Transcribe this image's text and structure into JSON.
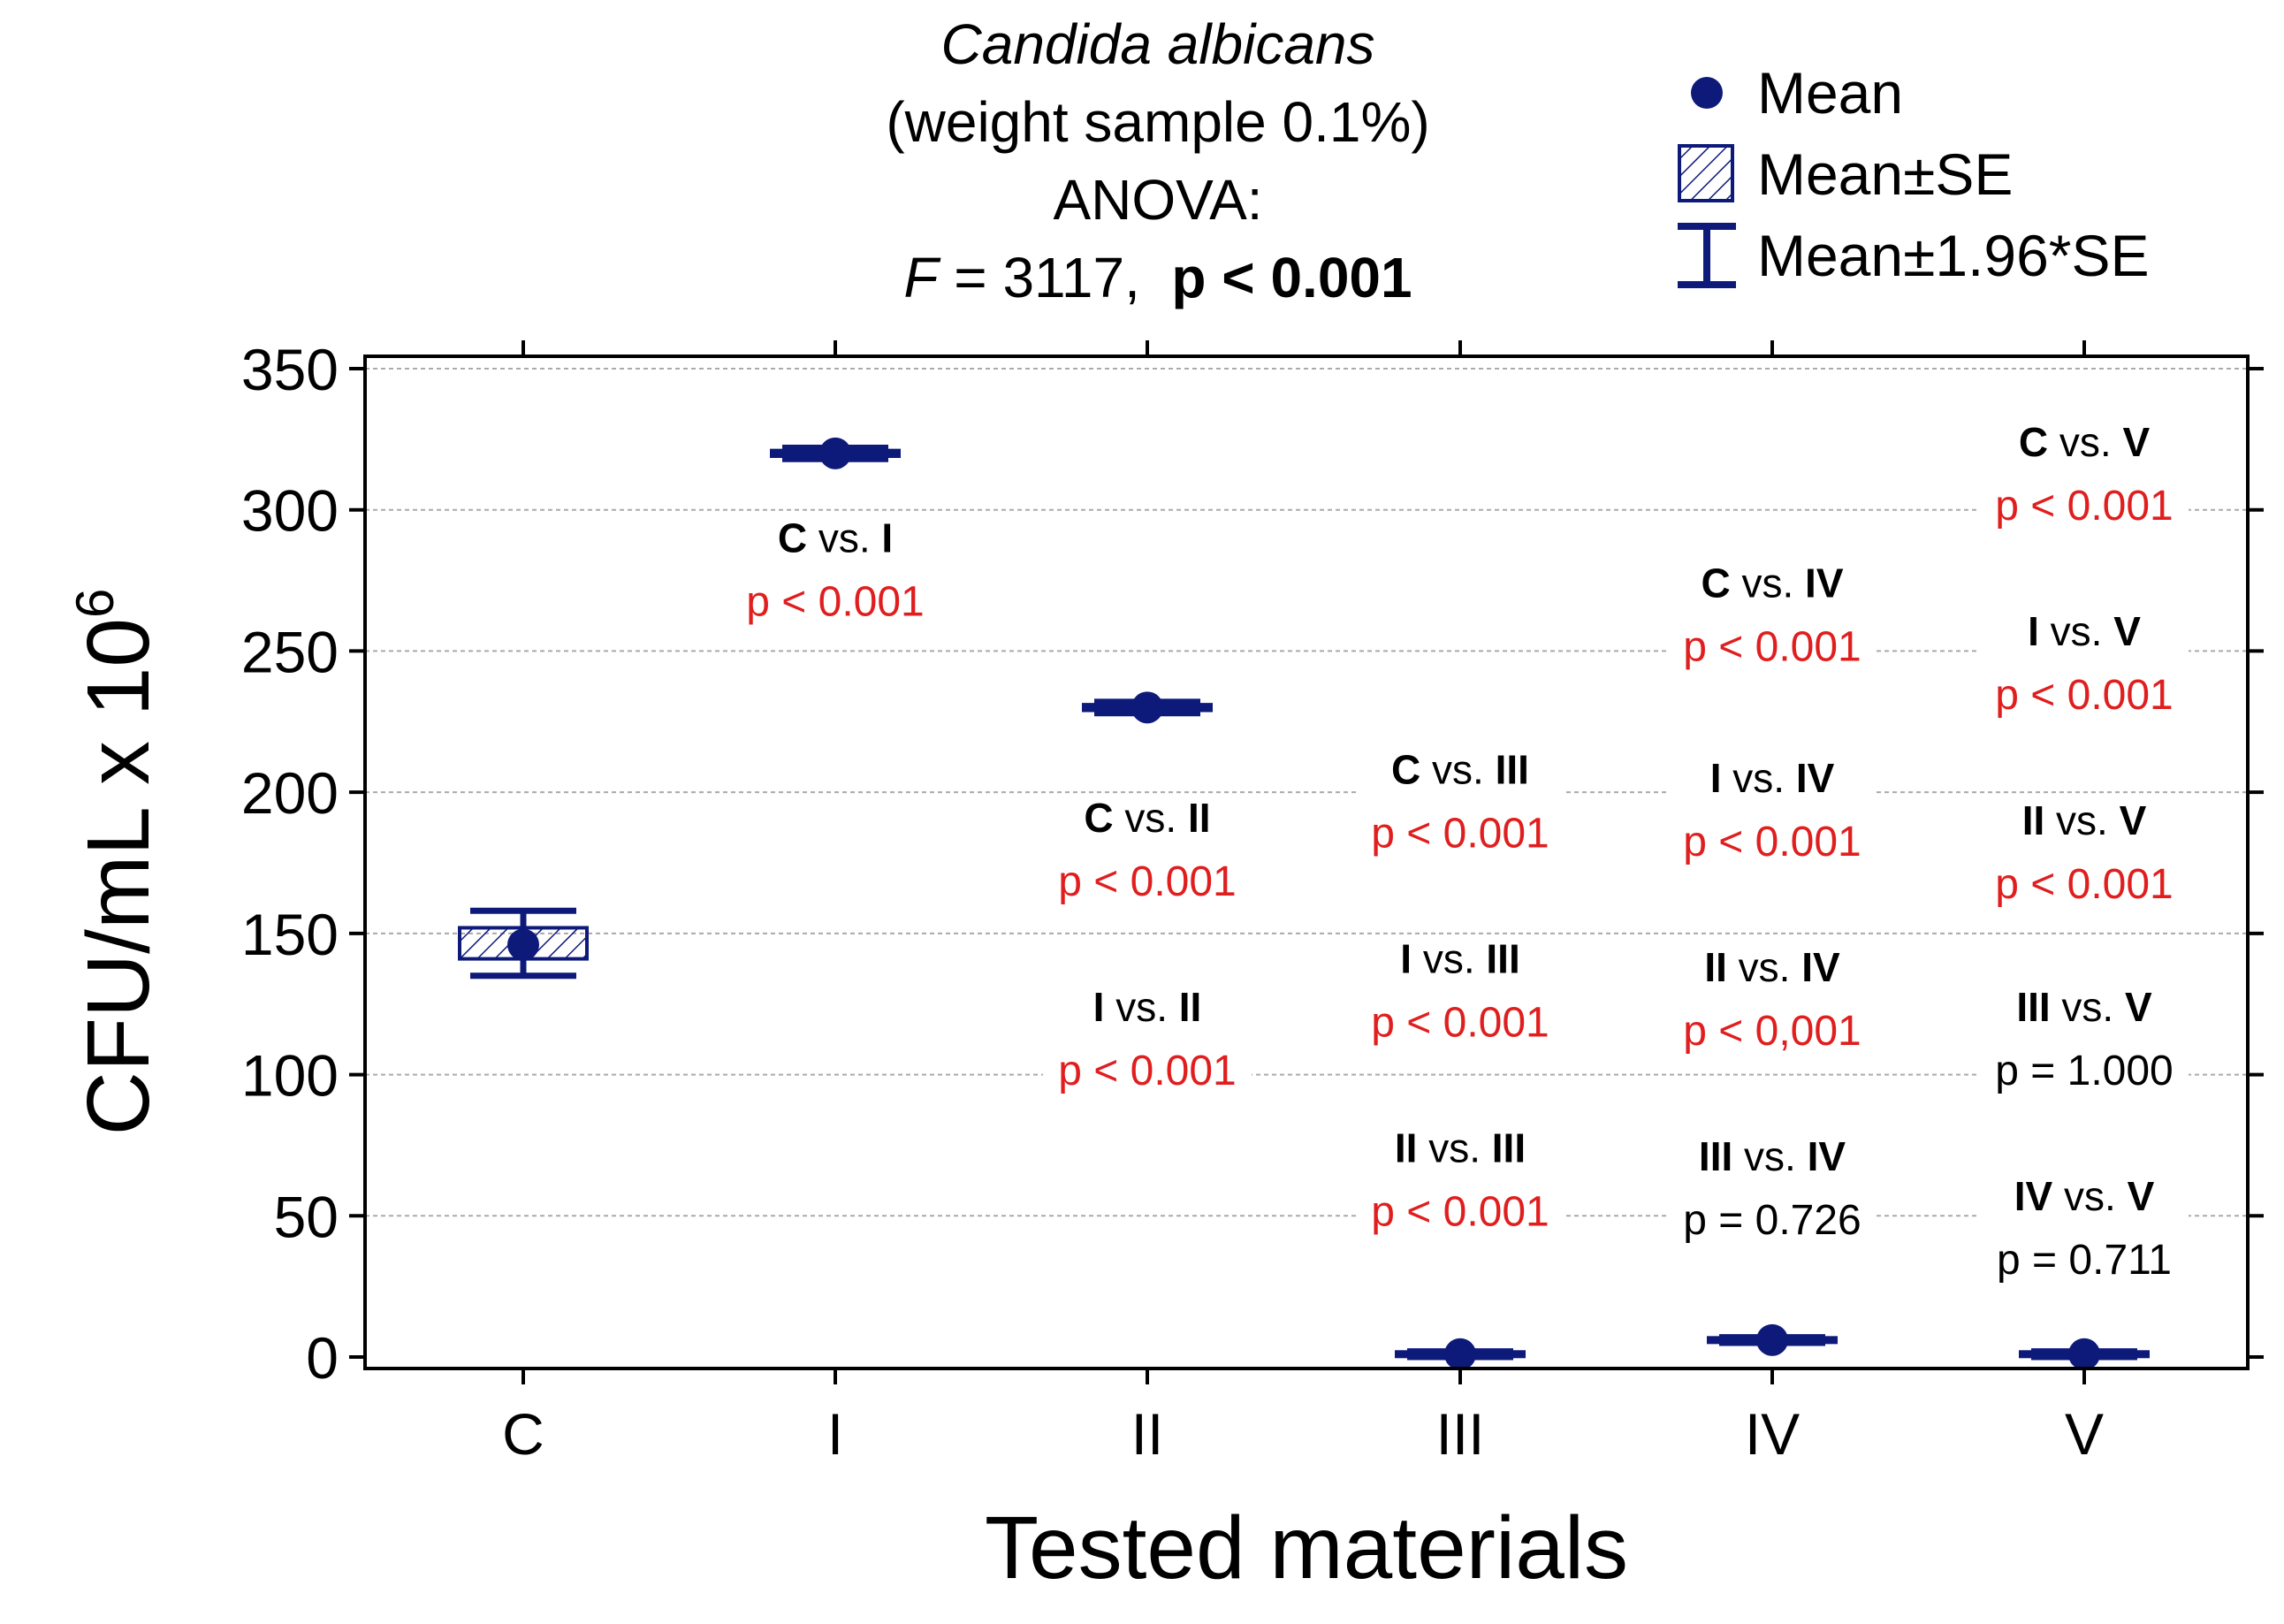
{
  "title": {
    "organism": "Candida albicans",
    "condition": "(weight sample 0.1%)",
    "test": "ANOVA:",
    "f_label": "F",
    "f_text": " = 3117,  ",
    "p_text": "p < 0.001"
  },
  "legend": {
    "mean": "Mean",
    "se": "Mean±SE",
    "ci": "Mean±1.96*SE"
  },
  "colors": {
    "series": "#0d1a7a",
    "significant": "#e01e1e",
    "nonsignificant": "#000000",
    "grid": "#aaaaaa",
    "axis": "#000000"
  },
  "chart_data": {
    "type": "scatter",
    "title": "Candida albicans (weight sample 0.1%) ANOVA: F = 3117, p < 0.001",
    "xlabel": "Tested materials",
    "ylabel": "CFU/mL x 10",
    "ylabel_sup": "6",
    "ylim": [
      0,
      350
    ],
    "yticks": [
      0,
      50,
      100,
      150,
      200,
      250,
      300,
      350
    ],
    "grid": true,
    "legend_position": "top-right",
    "categories": [
      "C",
      "I",
      "II",
      "III",
      "IV",
      "V"
    ],
    "series": [
      {
        "name": "Mean",
        "values": [
          146,
          320,
          230,
          1,
          6,
          1
        ],
        "se_low": [
          141,
          319,
          229,
          0.5,
          5.5,
          0.5
        ],
        "se_high": [
          152,
          321,
          231,
          1.5,
          6.5,
          1.5
        ],
        "ci_low": [
          135,
          318,
          228,
          0,
          5,
          0
        ],
        "ci_high": [
          158,
          322,
          232,
          2,
          7,
          2
        ]
      }
    ],
    "annotations": [
      {
        "col": 1,
        "pair": "C vs. I",
        "a": "C",
        "b": "I",
        "p": "p < 0.001",
        "y": 285,
        "sig": true
      },
      {
        "col": 2,
        "pair": "C vs. II",
        "a": "C",
        "b": "II",
        "p": "p < 0.001",
        "y": 186,
        "sig": true
      },
      {
        "col": 2,
        "pair": "I vs. II",
        "a": "I",
        "b": "II",
        "p": "p < 0.001",
        "y": 119,
        "sig": true
      },
      {
        "col": 3,
        "pair": "C vs. III",
        "a": "C",
        "b": "III",
        "p": "p < 0.001",
        "y": 203,
        "sig": true
      },
      {
        "col": 3,
        "pair": "I vs. III",
        "a": "I",
        "b": "III",
        "p": "p < 0.001",
        "y": 136,
        "sig": true
      },
      {
        "col": 3,
        "pair": "II vs. III",
        "a": "II",
        "b": "III",
        "p": "p < 0.001",
        "y": 69,
        "sig": true
      },
      {
        "col": 4,
        "pair": "C vs. IV",
        "a": "C",
        "b": "IV",
        "p": "p < 0.001",
        "y": 269,
        "sig": true
      },
      {
        "col": 4,
        "pair": "I vs. IV",
        "a": "I",
        "b": "IV",
        "p": "p < 0.001",
        "y": 200,
        "sig": true
      },
      {
        "col": 4,
        "pair": "II vs. IV",
        "a": "II",
        "b": "IV",
        "p": "p < 0,001",
        "y": 133,
        "sig": true
      },
      {
        "col": 4,
        "pair": "III vs. IV",
        "a": "III",
        "b": "IV",
        "p": "p = 0.726",
        "y": 66,
        "sig": false
      },
      {
        "col": 5,
        "pair": "C vs. V",
        "a": "C",
        "b": "V",
        "p": "p < 0.001",
        "y": 319,
        "sig": true
      },
      {
        "col": 5,
        "pair": "I vs. V",
        "a": "I",
        "b": "V",
        "p": "p < 0.001",
        "y": 252,
        "sig": true
      },
      {
        "col": 5,
        "pair": "II vs. V",
        "a": "II",
        "b": "V",
        "p": "p < 0.001",
        "y": 185,
        "sig": true
      },
      {
        "col": 5,
        "pair": "III vs. V",
        "a": "III",
        "b": "V",
        "p": "p = 1.000",
        "y": 119,
        "sig": false
      },
      {
        "col": 5,
        "pair": "IV vs. V",
        "a": "IV",
        "b": "V",
        "p": "p = 0.711",
        "y": 52,
        "sig": false
      }
    ]
  }
}
